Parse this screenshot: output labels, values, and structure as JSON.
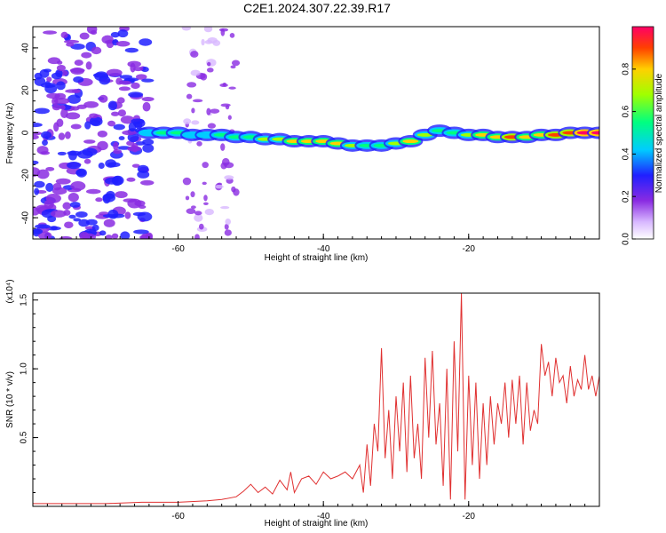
{
  "title": "C2E1.2024.307.22.39.R17",
  "chart_data": [
    {
      "type": "heatmap",
      "xlabel": "Height of straight line (km)",
      "ylabel": "Frequency (Hz)",
      "xlim": [
        -80,
        -2
      ],
      "ylim": [
        -50,
        50
      ],
      "xticks": [
        "-60",
        "-40",
        "-20"
      ],
      "yticks": [
        "-40",
        "-20",
        "0",
        "20",
        "40"
      ],
      "colorbar": {
        "label": "Normalized spectral amplitude",
        "range": [
          0,
          1
        ],
        "ticks": [
          "0.0",
          "0.2",
          "0.4",
          "0.6",
          "0.8"
        ]
      },
      "ridge": {
        "x": [
          -64,
          -62,
          -60,
          -58,
          -56,
          -54,
          -52,
          -50,
          -48,
          -46,
          -44,
          -42,
          -40,
          -38,
          -36,
          -34,
          -32,
          -30,
          -28,
          -26,
          -24,
          -22,
          -20,
          -18,
          -16,
          -14,
          -12,
          -10,
          -8,
          -6,
          -4,
          -2
        ],
        "y": [
          0,
          0,
          0,
          -1,
          -1,
          -1,
          -2,
          -2,
          -3,
          -3,
          -4,
          -4,
          -4,
          -5,
          -6,
          -6,
          -6,
          -5,
          -4,
          -1,
          1,
          0,
          -1,
          -1,
          -2,
          -2,
          -2,
          -1,
          -1,
          0,
          0,
          0
        ],
        "amplitude": [
          0.4,
          0.5,
          0.45,
          0.35,
          0.4,
          0.45,
          0.5,
          0.55,
          0.6,
          0.6,
          0.7,
          0.75,
          0.8,
          0.7,
          0.6,
          0.55,
          0.5,
          0.65,
          0.7,
          0.6,
          0.5,
          0.55,
          0.6,
          0.75,
          0.8,
          0.85,
          0.8,
          0.75,
          0.85,
          0.9,
          0.95,
          0.95
        ]
      }
    },
    {
      "type": "line",
      "xlabel": "Height of straight line (km)",
      "ylabel": "SNR (10 * v/v)",
      "y_multiplier": "(x10⁴)",
      "xlim": [
        -80,
        -2
      ],
      "ylim": [
        0,
        1.55
      ],
      "xticks": [
        "-60",
        "-40",
        "-20"
      ],
      "yticks": [
        "0.5",
        "1.0",
        "1.5"
      ],
      "color": "#e03030",
      "series": [
        {
          "x": [
            -80,
            -75,
            -70,
            -65,
            -60,
            -56,
            -54,
            -52,
            -51,
            -50,
            -49,
            -48,
            -47,
            -46,
            -45,
            -44.5,
            -44,
            -43,
            -42,
            -41,
            -40,
            -39,
            -38,
            -37,
            -36,
            -35,
            -34.5,
            -34,
            -33.5,
            -33,
            -32.5,
            -32,
            -31.5,
            -31,
            -30.5,
            -30,
            -29.5,
            -29,
            -28.5,
            -28,
            -27.5,
            -27,
            -26.5,
            -26,
            -25.5,
            -25,
            -24.5,
            -24,
            -23.5,
            -23,
            -22.5,
            -22,
            -21.5,
            -21,
            -20.5,
            -20,
            -19.5,
            -19,
            -18.5,
            -18,
            -17.5,
            -17,
            -16.5,
            -16,
            -15.5,
            -15,
            -14.5,
            -14,
            -13.5,
            -13,
            -12.5,
            -12,
            -11.5,
            -11,
            -10.5,
            -10,
            -9.5,
            -9,
            -8.5,
            -8,
            -7.5,
            -7,
            -6.5,
            -6,
            -5.5,
            -5,
            -4.5,
            -4,
            -3.5,
            -3,
            -2.5,
            -2
          ],
          "y": [
            0.02,
            0.02,
            0.02,
            0.03,
            0.03,
            0.04,
            0.05,
            0.07,
            0.11,
            0.16,
            0.1,
            0.14,
            0.09,
            0.19,
            0.12,
            0.25,
            0.1,
            0.2,
            0.22,
            0.16,
            0.25,
            0.2,
            0.22,
            0.25,
            0.2,
            0.3,
            0.1,
            0.45,
            0.15,
            0.6,
            0.4,
            1.15,
            0.35,
            0.7,
            0.2,
            0.8,
            0.4,
            0.9,
            0.25,
            0.95,
            0.35,
            0.6,
            0.2,
            1.08,
            0.5,
            1.13,
            0.45,
            0.75,
            0.15,
            1.0,
            0.05,
            1.2,
            0.4,
            1.55,
            0.05,
            0.95,
            0.3,
            0.9,
            0.2,
            0.75,
            0.3,
            0.8,
            0.45,
            0.75,
            0.6,
            0.9,
            0.5,
            0.92,
            0.6,
            0.95,
            0.45,
            0.9,
            0.55,
            0.7,
            0.6,
            1.18,
            0.95,
            1.05,
            0.8,
            1.08,
            0.9,
            0.95,
            0.75,
            1.02,
            0.8,
            0.92,
            0.85,
            1.1,
            0.85,
            0.95,
            0.8,
            0.95
          ]
        }
      ]
    }
  ]
}
